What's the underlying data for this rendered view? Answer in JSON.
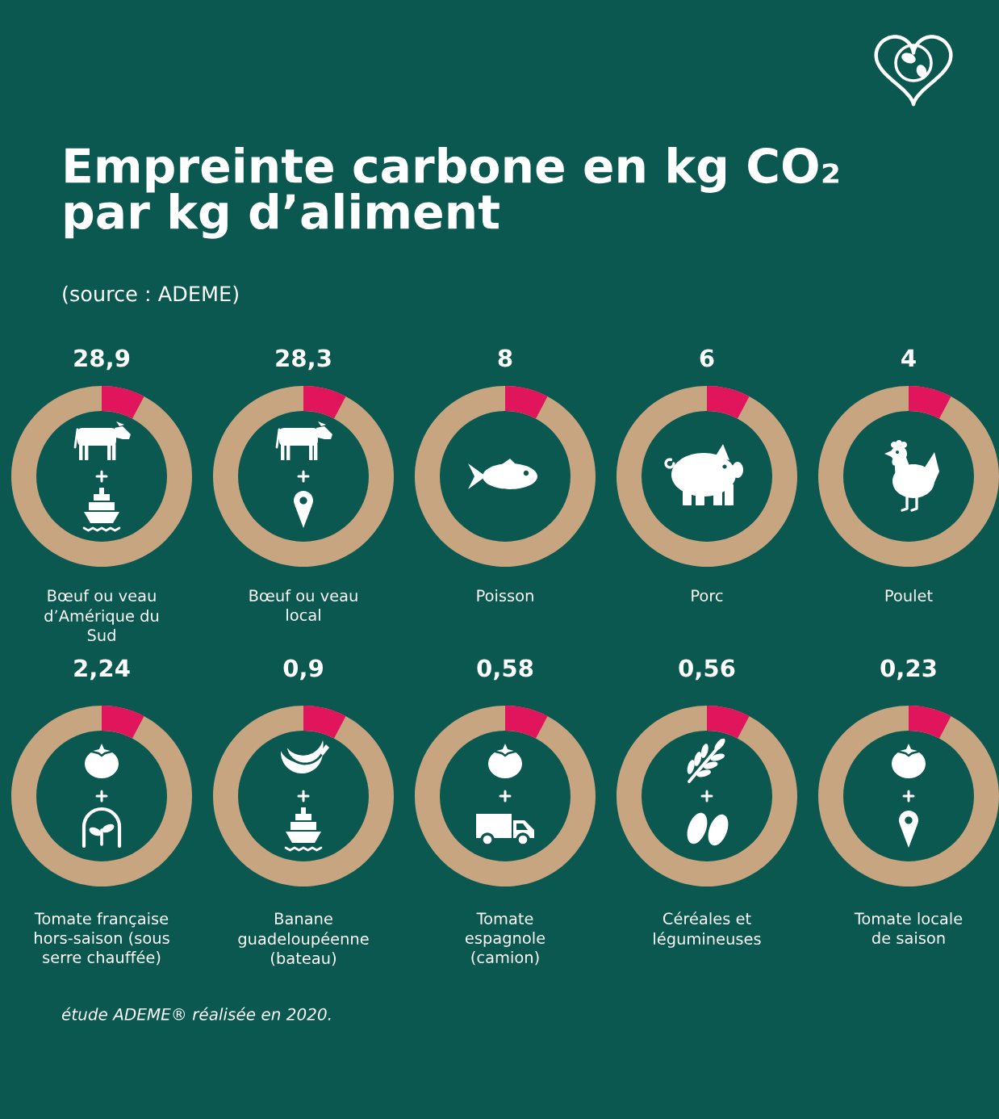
{
  "chart_data": [
    {
      "type": "other",
      "title": "Empreinte carbone en kg CO₂\npar kg d’aliment",
      "subtitle": "(source : ADEME)",
      "annotations": [
        "étude ADEME® réalisée en 2020."
      ]
    },
    {
      "type": "other",
      "categories": [
        "Bœuf ou veau\nd’Amérique du\nSud"
      ],
      "values": [
        28.9
      ],
      "value_labels": [
        "28,9"
      ]
    },
    {
      "type": "other",
      "categories": [
        "Bœuf ou veau\nlocal"
      ],
      "values": [
        28.3
      ],
      "value_labels": [
        "28,3"
      ]
    },
    {
      "type": "other",
      "categories": [
        "Poisson"
      ],
      "values": [
        8
      ],
      "value_labels": [
        "8"
      ]
    },
    {
      "type": "other",
      "categories": [
        "Porc"
      ],
      "values": [
        6
      ],
      "value_labels": [
        "6"
      ]
    },
    {
      "type": "other",
      "categories": [
        "Poulet"
      ],
      "values": [
        4
      ],
      "value_labels": [
        "4"
      ]
    },
    {
      "type": "other",
      "categories": [
        "Tomate française\nhors-saison (sous\nserre chauffée)"
      ],
      "values": [
        2.24
      ],
      "value_labels": [
        "2,24"
      ]
    },
    {
      "type": "other",
      "categories": [
        "Banane\nguadeloupéenne\n(bateau)"
      ],
      "values": [
        0.9
      ],
      "value_labels": [
        "0,9"
      ]
    },
    {
      "type": "other",
      "categories": [
        "Tomate\nespagnole\n(camion)"
      ],
      "values": [
        0.58
      ],
      "value_labels": [
        "0,58"
      ]
    },
    {
      "type": "other",
      "categories": [
        "Céréales et\nlégumineuses"
      ],
      "values": [
        0.56
      ],
      "value_labels": [
        "0,56"
      ]
    },
    {
      "type": "other",
      "categories": [
        "Tomate locale\nde saison"
      ],
      "values": [
        0.23
      ],
      "value_labels": [
        "0,23"
      ]
    }
  ]
}
